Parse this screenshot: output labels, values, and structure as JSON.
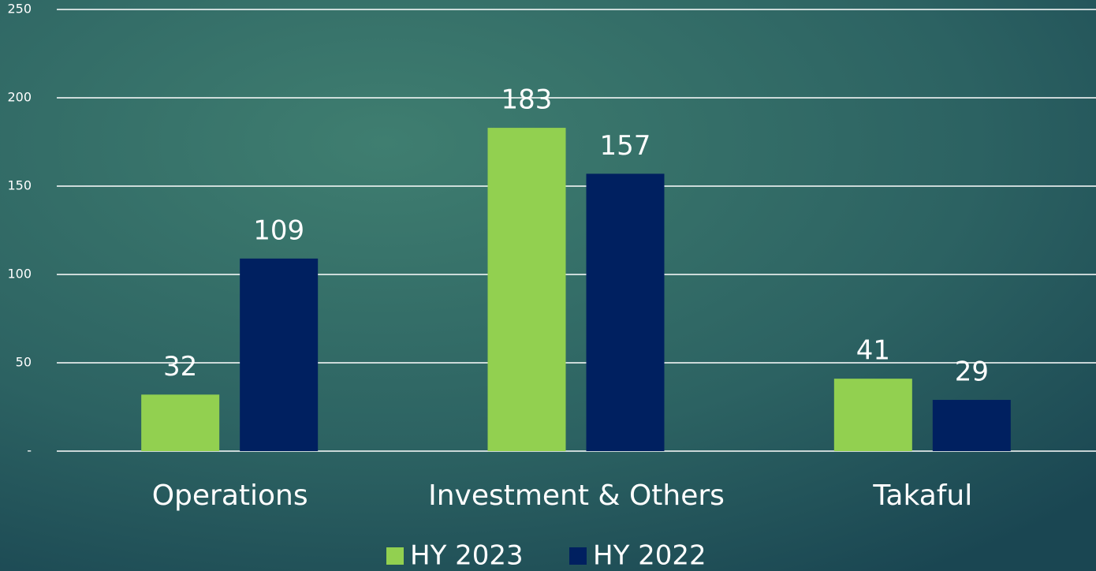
{
  "chart_data": {
    "type": "bar",
    "categories": [
      "Operations",
      "Investment & Others",
      "Takaful"
    ],
    "series": [
      {
        "name": "HY 2023",
        "color": "#92d050",
        "values": [
          32,
          183,
          41
        ]
      },
      {
        "name": "HY 2022",
        "color": "#002060",
        "values": [
          109,
          157,
          29
        ]
      }
    ],
    "ylim": [
      0,
      250
    ],
    "yticks": [
      {
        "value": 0,
        "label": "-"
      },
      50,
      100,
      150,
      200,
      250
    ],
    "grid": true,
    "legend": "bottom"
  }
}
